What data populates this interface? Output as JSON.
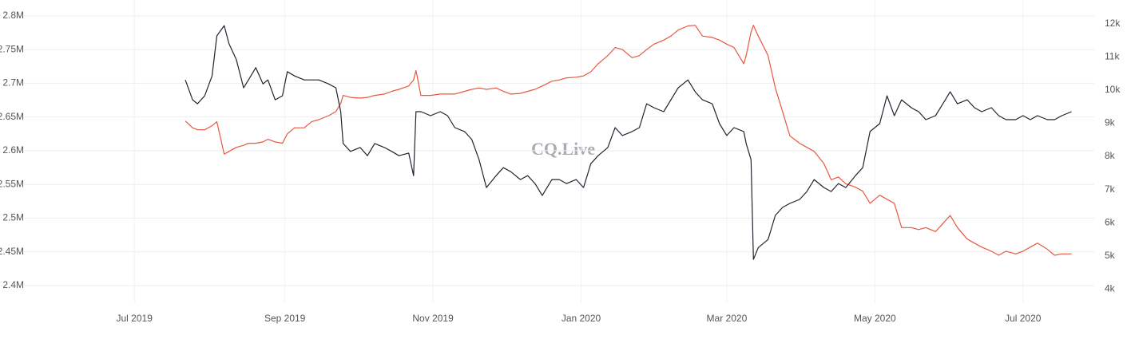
{
  "chart_data": {
    "type": "line",
    "watermark": "CQ.Live",
    "x": [
      "2019-07-22",
      "2019-07-25",
      "2019-07-27",
      "2019-07-30",
      "2019-08-02",
      "2019-08-04",
      "2019-08-07",
      "2019-08-09",
      "2019-08-12",
      "2019-08-15",
      "2019-08-17",
      "2019-08-20",
      "2019-08-23",
      "2019-08-25",
      "2019-08-28",
      "2019-08-31",
      "2019-09-02",
      "2019-09-05",
      "2019-09-09",
      "2019-09-12",
      "2019-09-15",
      "2019-09-19",
      "2019-09-22",
      "2019-09-24",
      "2019-09-25",
      "2019-09-28",
      "2019-10-02",
      "2019-10-05",
      "2019-10-08",
      "2019-10-12",
      "2019-10-15",
      "2019-10-18",
      "2019-10-22",
      "2019-10-24",
      "2019-10-25",
      "2019-10-27",
      "2019-10-31",
      "2019-11-04",
      "2019-11-07",
      "2019-11-10",
      "2019-11-14",
      "2019-11-17",
      "2019-11-20",
      "2019-11-23",
      "2019-11-27",
      "2019-11-30",
      "2019-12-03",
      "2019-12-07",
      "2019-12-10",
      "2019-12-13",
      "2019-12-16",
      "2019-12-20",
      "2019-12-23",
      "2019-12-26",
      "2019-12-30",
      "2020-01-02",
      "2020-01-05",
      "2020-01-08",
      "2020-01-12",
      "2020-01-15",
      "2020-01-18",
      "2020-01-22",
      "2020-01-25",
      "2020-01-28",
      "2020-01-31",
      "2020-02-04",
      "2020-02-07",
      "2020-02-10",
      "2020-02-14",
      "2020-02-17",
      "2020-02-20",
      "2020-02-24",
      "2020-02-27",
      "2020-03-01",
      "2020-03-04",
      "2020-03-08",
      "2020-03-09",
      "2020-03-11",
      "2020-03-12",
      "2020-03-14",
      "2020-03-18",
      "2020-03-21",
      "2020-03-24",
      "2020-03-27",
      "2020-03-31",
      "2020-04-03",
      "2020-04-06",
      "2020-04-10",
      "2020-04-13",
      "2020-04-16",
      "2020-04-19",
      "2020-04-23",
      "2020-04-26",
      "2020-04-29",
      "2020-05-03",
      "2020-05-06",
      "2020-05-09",
      "2020-05-12",
      "2020-05-16",
      "2020-05-19",
      "2020-05-22",
      "2020-05-26",
      "2020-05-29",
      "2020-06-01",
      "2020-06-04",
      "2020-06-08",
      "2020-06-11",
      "2020-06-14",
      "2020-06-18",
      "2020-06-21",
      "2020-06-24",
      "2020-06-28",
      "2020-07-01",
      "2020-07-04",
      "2020-07-07",
      "2020-07-11",
      "2020-07-14",
      "2020-07-17",
      "2020-07-21"
    ],
    "series": [
      {
        "color": "#e8583f",
        "axis": "y",
        "values": [
          2644000,
          2634000,
          2631000,
          2631000,
          2637000,
          2643000,
          2595000,
          2599000,
          2605000,
          2608000,
          2611000,
          2611000,
          2613000,
          2617000,
          2613000,
          2611000,
          2625000,
          2634000,
          2634000,
          2643000,
          2646000,
          2652000,
          2658000,
          2670000,
          2682000,
          2679000,
          2678000,
          2679000,
          2682000,
          2684000,
          2688000,
          2691000,
          2696000,
          2705000,
          2719000,
          2682000,
          2682000,
          2684000,
          2684000,
          2684000,
          2688000,
          2691000,
          2693000,
          2691000,
          2693000,
          2688000,
          2684000,
          2685000,
          2688000,
          2691000,
          2696000,
          2703000,
          2705000,
          2708000,
          2709000,
          2711000,
          2717000,
          2729000,
          2741000,
          2753000,
          2750000,
          2738000,
          2741000,
          2750000,
          2758000,
          2764000,
          2770000,
          2779000,
          2785000,
          2786000,
          2770000,
          2768000,
          2764000,
          2758000,
          2753000,
          2729000,
          2741000,
          2776000,
          2786000,
          2770000,
          2741000,
          2693000,
          2658000,
          2622000,
          2611000,
          2605000,
          2599000,
          2581000,
          2557000,
          2561000,
          2551000,
          2546000,
          2540000,
          2522000,
          2534000,
          2528000,
          2522000,
          2486000,
          2486000,
          2483000,
          2486000,
          2480000,
          2492000,
          2504000,
          2486000,
          2469000,
          2463000,
          2457000,
          2451000,
          2445000,
          2451000,
          2447000,
          2451000,
          2457000,
          2463000,
          2454000,
          2445000,
          2447000,
          2447000
        ]
      },
      {
        "color": "#1f2430",
        "axis": "y2",
        "values": [
          10310,
          9710,
          9590,
          9830,
          10430,
          11640,
          11950,
          11400,
          10920,
          10070,
          10310,
          10680,
          10190,
          10310,
          9710,
          9830,
          10560,
          10430,
          10310,
          10310,
          10310,
          10190,
          10070,
          9350,
          8390,
          8150,
          8270,
          8020,
          8390,
          8270,
          8150,
          8020,
          8100,
          7420,
          9350,
          9350,
          9230,
          9350,
          9230,
          8870,
          8750,
          8510,
          7900,
          7060,
          7420,
          7660,
          7540,
          7300,
          7420,
          7180,
          6820,
          7300,
          7300,
          7180,
          7300,
          7060,
          7780,
          8020,
          8270,
          8870,
          8630,
          8750,
          8870,
          9590,
          9470,
          9350,
          9710,
          10070,
          10310,
          9950,
          9710,
          9590,
          8990,
          8630,
          8870,
          8750,
          8390,
          7900,
          4890,
          5250,
          5490,
          6220,
          6460,
          6580,
          6700,
          6940,
          7300,
          7060,
          6940,
          7180,
          7060,
          7420,
          7660,
          8750,
          8990,
          9830,
          9230,
          9710,
          9470,
          9350,
          9110,
          9230,
          9590,
          9950,
          9590,
          9710,
          9470,
          9350,
          9470,
          9230,
          9110,
          9110,
          9230,
          9110,
          9230,
          9110,
          9110,
          9230,
          9350
        ]
      }
    ],
    "xlim": [
      "2019-06-01",
      "2020-08-01"
    ],
    "xticks": [
      {
        "value": "2019-07-01",
        "label": "Jul 2019"
      },
      {
        "value": "2019-09-01",
        "label": "Sep 2019"
      },
      {
        "value": "2019-11-01",
        "label": "Nov 2019"
      },
      {
        "value": "2020-01-01",
        "label": "Jan 2020"
      },
      {
        "value": "2020-03-01",
        "label": "Mar 2020"
      },
      {
        "value": "2020-05-01",
        "label": "May 2020"
      },
      {
        "value": "2020-07-01",
        "label": "Jul 2020"
      }
    ],
    "ylim": [
      2374000,
      2814000
    ],
    "yticks": [
      {
        "value": 2400000,
        "label": "2.4M"
      },
      {
        "value": 2450000,
        "label": "2.45M"
      },
      {
        "value": 2500000,
        "label": "2.5M"
      },
      {
        "value": 2550000,
        "label": "2.55M"
      },
      {
        "value": 2600000,
        "label": "2.6M"
      },
      {
        "value": 2650000,
        "label": "2.65M"
      },
      {
        "value": 2700000,
        "label": "2.7M"
      },
      {
        "value": 2750000,
        "label": "2.75M"
      },
      {
        "value": 2800000,
        "label": "2.8M"
      }
    ],
    "y2lim": [
      3570,
      12530
    ],
    "y2ticks": [
      {
        "value": 4000,
        "label": "4k"
      },
      {
        "value": 5000,
        "label": "5k"
      },
      {
        "value": 6000,
        "label": "6k"
      },
      {
        "value": 7000,
        "label": "7k"
      },
      {
        "value": 8000,
        "label": "8k"
      },
      {
        "value": 9000,
        "label": "9k"
      },
      {
        "value": 10000,
        "label": "10k"
      },
      {
        "value": 11000,
        "label": "11k"
      },
      {
        "value": 12000,
        "label": "12k"
      }
    ],
    "grid": true
  }
}
